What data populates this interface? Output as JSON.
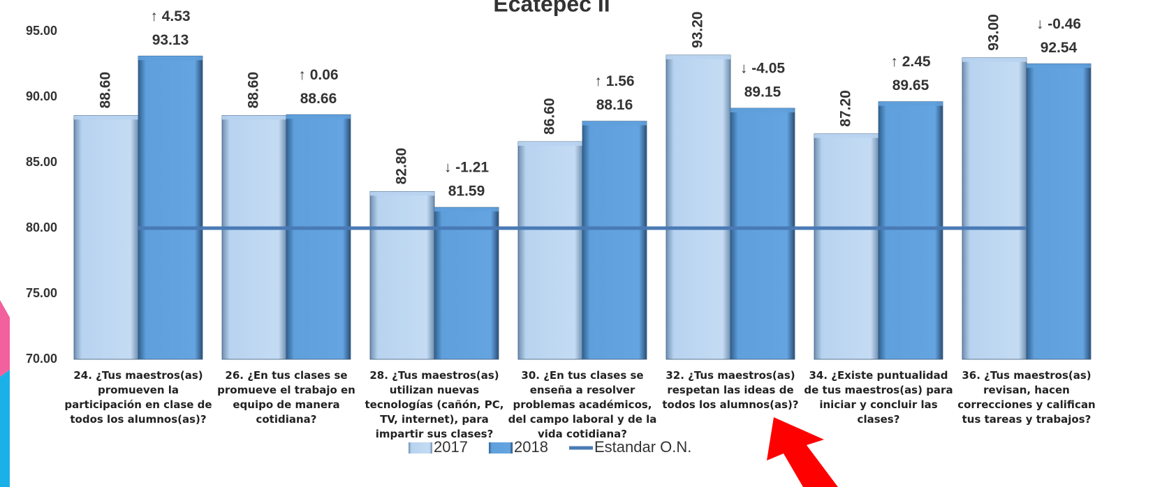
{
  "chart_data": {
    "type": "bar",
    "title": "Ecatepec II",
    "categories": [
      "24. ¿Tus maestros(as) promueven la participación en clase de todos los alumnos(as)?",
      "26. ¿En tus clases se promueve el trabajo en equipo de manera cotidiana?",
      "28. ¿Tus maestros(as) utilizan nuevas tecnologías (cañón, PC, TV, internet), para impartir sus clases?",
      "30. ¿En tus clases se enseña a resolver problemas académicos, del campo laboral y de la vida cotidiana?",
      "32. ¿Tus maestros(as) respetan las ideas de todos los alumnos(as)?",
      "34. ¿Existe puntualidad de tus maestros(as) para iniciar y concluir las clases?",
      "36. ¿Tus maestros(as) revisan, hacen correcciones y califican tus tareas y trabajos?"
    ],
    "series": [
      {
        "name": "2017",
        "color": "#b8d3f0",
        "values": [
          88.6,
          88.6,
          82.8,
          86.6,
          93.2,
          87.2,
          93.0
        ],
        "value_labels": [
          "88.60",
          "88.60",
          "82.80",
          "86.60",
          "93.20",
          "87.20",
          "93.00"
        ]
      },
      {
        "name": "2018",
        "color": "#5fa0dc",
        "values": [
          93.13,
          88.66,
          81.59,
          88.16,
          89.15,
          89.65,
          92.54
        ]
      },
      {
        "name": "Estandar O.N.",
        "type": "line",
        "color": "#4a7ab5",
        "values": [
          80,
          80,
          80,
          80,
          80,
          80,
          80
        ]
      }
    ],
    "annotations": [
      "↑ 4.53",
      "↑ 0.06",
      "↓ -1.21",
      "↑ 1.56",
      "↓ -4.05",
      "↑ 2.45",
      "↓ -0.46"
    ],
    "ylim": [
      70,
      97.4
    ],
    "yticks": [
      {
        "value": 70,
        "label": "70.00"
      },
      {
        "value": 75,
        "label": "75.00"
      },
      {
        "value": 80,
        "label": "80.00"
      },
      {
        "value": 85,
        "label": "85.00"
      },
      {
        "value": 90,
        "label": "90.00"
      },
      {
        "value": 95,
        "label": "95.00"
      }
    ]
  }
}
